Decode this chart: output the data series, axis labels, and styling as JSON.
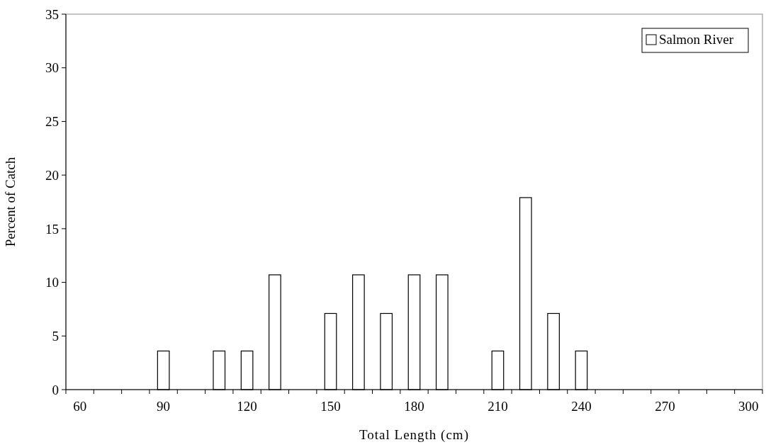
{
  "chart_data": {
    "type": "bar",
    "xlabel": "Total Length (cm)",
    "ylabel": "Percent of Catch",
    "categories": [
      "60",
      null,
      null,
      "90",
      null,
      null,
      "120",
      null,
      null,
      "150",
      null,
      null,
      "180",
      null,
      null,
      "210",
      null,
      null,
      "240",
      null,
      null,
      "270",
      null,
      null,
      "300"
    ],
    "series": [
      {
        "name": "Salmon River",
        "color": "#ffffff",
        "values": [
          0,
          0,
          0,
          3.6,
          0,
          3.6,
          3.6,
          10.7,
          0,
          7.1,
          10.7,
          7.1,
          10.7,
          10.7,
          0,
          3.6,
          17.9,
          7.1,
          3.6,
          0,
          0,
          0,
          0,
          0,
          0
        ]
      }
    ],
    "ylim": [
      0,
      35
    ],
    "yticks": [
      0,
      5,
      10,
      15,
      20,
      25,
      30,
      35
    ],
    "grid": false,
    "legend": "top right"
  }
}
